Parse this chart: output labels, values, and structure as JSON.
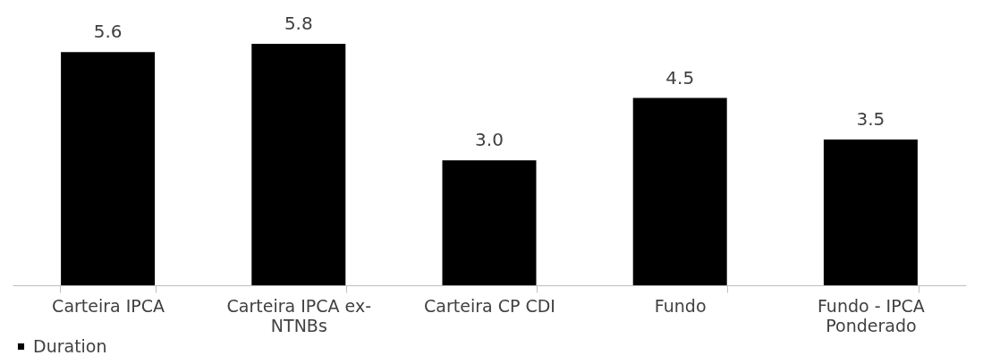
{
  "chart_data": {
    "type": "bar",
    "categories": [
      "Carteira IPCA",
      "Carteira IPCA ex-NTNBs",
      "Carteira CP CDI",
      "Fundo",
      "Fundo - IPCA Ponderado"
    ],
    "series": [
      {
        "name": "Duration",
        "color": "#000000",
        "values": [
          5.6,
          5.8,
          3.0,
          4.5,
          3.5
        ],
        "value_labels": [
          "5.6",
          "5.8",
          "3.0",
          "4.5",
          "3.5"
        ]
      }
    ],
    "legend": "bottom",
    "grid": false
  }
}
